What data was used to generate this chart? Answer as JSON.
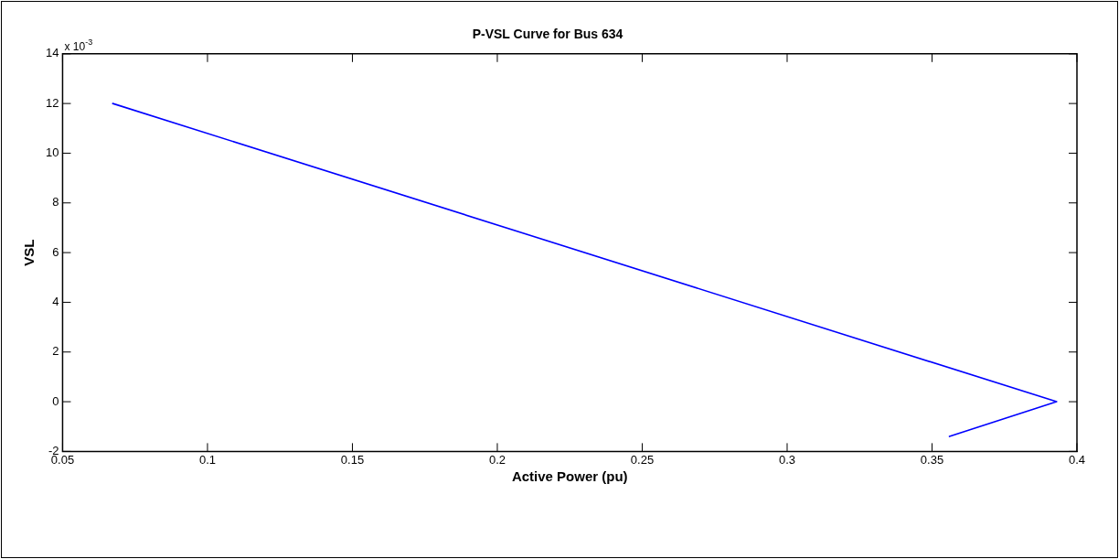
{
  "chart_data": {
    "type": "line",
    "title": "P-VSL Curve for Bus 634",
    "xlabel": "Active Power (pu)",
    "ylabel": "VSL",
    "annotations": [
      "x 10$^{-3}$"
    ],
    "series": [
      {
        "color": "#0000ff",
        "x": [
          0.0673,
          0.393,
          0.356
        ],
        "values": [
          12,
          0,
          -1.4
        ]
      }
    ],
    "xlim": [
      0.05,
      0.4
    ],
    "xticks": [
      0.05,
      0.1,
      0.15,
      0.2,
      0.25,
      0.3,
      0.35,
      0.4
    ],
    "ylim": [
      -2,
      14
    ],
    "yticks": [
      -2,
      0,
      2,
      4,
      6,
      8,
      10,
      12,
      14
    ],
    "grid": false,
    "legend": false,
    "marker": "none",
    "line_style": "solid"
  }
}
